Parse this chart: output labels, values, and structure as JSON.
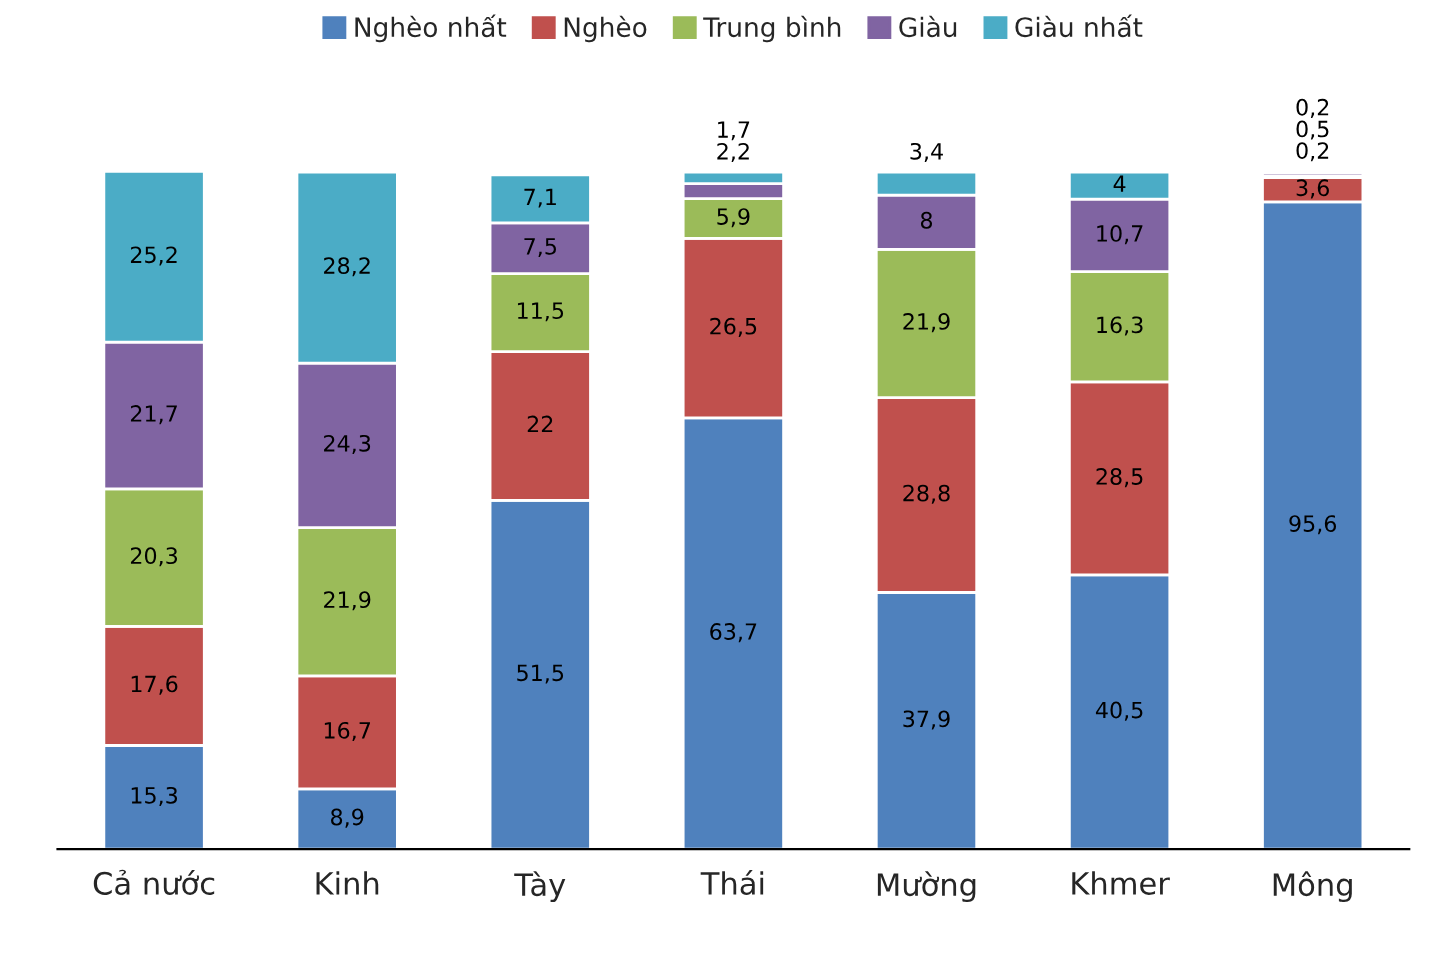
{
  "chart_data": {
    "type": "bar",
    "stacked": true,
    "legend": "top",
    "grid": false,
    "categories": [
      "Cả nước",
      "Kinh",
      "Tày",
      "Thái",
      "Mường",
      "Khmer",
      "Mông"
    ],
    "series": [
      {
        "name": "Nghèo nhất",
        "color": "#4f81bd",
        "values": [
          15.3,
          8.9,
          51.5,
          63.7,
          37.9,
          40.5,
          95.6
        ],
        "value_labels": [
          "15,3",
          "8,9",
          "51,5",
          "63,7",
          "37,9",
          "40,5",
          "95,6"
        ]
      },
      {
        "name": "Nghèo",
        "color": "#c0504d",
        "values": [
          17.6,
          16.7,
          22,
          26.5,
          28.8,
          28.5,
          3.6
        ],
        "value_labels": [
          "17,6",
          "16,7",
          "22",
          "26,5",
          "28,8",
          "28,5",
          "3,6"
        ]
      },
      {
        "name": "Trung bình",
        "color": "#9bbb59",
        "values": [
          20.3,
          21.9,
          11.5,
          5.9,
          21.9,
          16.3,
          0.2
        ],
        "value_labels": [
          "20,3",
          "21,9",
          "11,5",
          "5,9",
          "21,9",
          "16,3",
          "0,2"
        ]
      },
      {
        "name": "Giàu",
        "color": "#8064a2",
        "values": [
          21.7,
          24.3,
          7.5,
          2.2,
          8,
          10.7,
          0.5
        ],
        "value_labels": [
          "21,7",
          "24,3",
          "7,5",
          "2,2",
          "8",
          "10,7",
          "0,5"
        ]
      },
      {
        "name": "Giàu nhất",
        "color": "#4bacc6",
        "values": [
          25.2,
          28.2,
          7.1,
          1.7,
          3.4,
          4,
          0.2
        ],
        "value_labels": [
          "25,2",
          "28,2",
          "7,1",
          "1,7",
          "3,4",
          "4",
          "0,2"
        ]
      }
    ]
  }
}
